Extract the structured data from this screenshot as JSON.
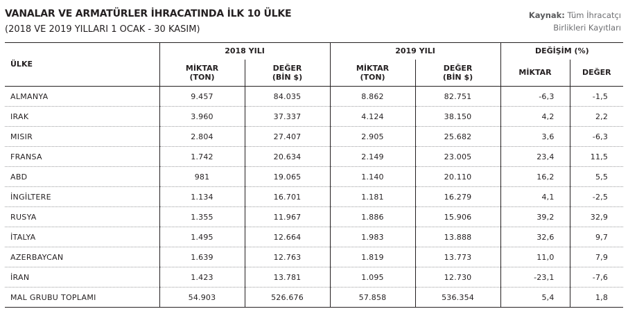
{
  "title": "VANALAR VE ARMATÜRLER İHRACATINDA İLK 10 ÜLKE",
  "subtitle": "(2018 VE 2019 YILLARI 1 OCAK - 30 KASIM)",
  "source": {
    "label": "Kaynak:",
    "line1": "Tüm İhracatçı",
    "line2": "Birlikleri Kayıtları"
  },
  "headers": {
    "country": "ÜLKE",
    "year2018": "2018 YILI",
    "year2019": "2019 YILI",
    "change": "DEĞİŞİM (%)",
    "miktar_1": "MİKTAR",
    "miktar_2": "(TON)",
    "deger_1": "DEĞER",
    "deger_2": "(BİN $)",
    "miktar": "MİKTAR",
    "deger": "DEĞER"
  },
  "rows": [
    {
      "country": "ALMANYA",
      "m2018": "9.457",
      "d2018": "84.035",
      "m2019": "8.862",
      "d2019": "82.751",
      "cm": "-6,3",
      "cd": "-1,5"
    },
    {
      "country": "IRAK",
      "m2018": "3.960",
      "d2018": "37.337",
      "m2019": "4.124",
      "d2019": "38.150",
      "cm": "4,2",
      "cd": "2,2"
    },
    {
      "country": "MISIR",
      "m2018": "2.804",
      "d2018": "27.407",
      "m2019": "2.905",
      "d2019": "25.682",
      "cm": "3,6",
      "cd": "-6,3"
    },
    {
      "country": "FRANSA",
      "m2018": "1.742",
      "d2018": "20.634",
      "m2019": "2.149",
      "d2019": "23.005",
      "cm": "23,4",
      "cd": "11,5"
    },
    {
      "country": "ABD",
      "m2018": "981",
      "d2018": "19.065",
      "m2019": "1.140",
      "d2019": "20.110",
      "cm": "16,2",
      "cd": "5,5"
    },
    {
      "country": "İNGİLTERE",
      "m2018": "1.134",
      "d2018": "16.701",
      "m2019": "1.181",
      "d2019": "16.279",
      "cm": "4,1",
      "cd": "-2,5"
    },
    {
      "country": "RUSYA",
      "m2018": "1.355",
      "d2018": "11.967",
      "m2019": "1.886",
      "d2019": "15.906",
      "cm": "39,2",
      "cd": "32,9"
    },
    {
      "country": "İTALYA",
      "m2018": "1.495",
      "d2018": "12.664",
      "m2019": "1.983",
      "d2019": "13.888",
      "cm": "32,6",
      "cd": "9,7"
    },
    {
      "country": "AZERBAYCAN",
      "m2018": "1.639",
      "d2018": "12.763",
      "m2019": "1.819",
      "d2019": "13.773",
      "cm": "11,0",
      "cd": "7,9"
    },
    {
      "country": "İRAN",
      "m2018": "1.423",
      "d2018": "13.781",
      "m2019": "1.095",
      "d2019": "12.730",
      "cm": "-23,1",
      "cd": "-7,6"
    },
    {
      "country": "MAL GRUBU TOPLAMI",
      "m2018": "54.903",
      "d2018": "526.676",
      "m2019": "57.858",
      "d2019": "536.354",
      "cm": "5,4",
      "cd": "1,8"
    }
  ]
}
